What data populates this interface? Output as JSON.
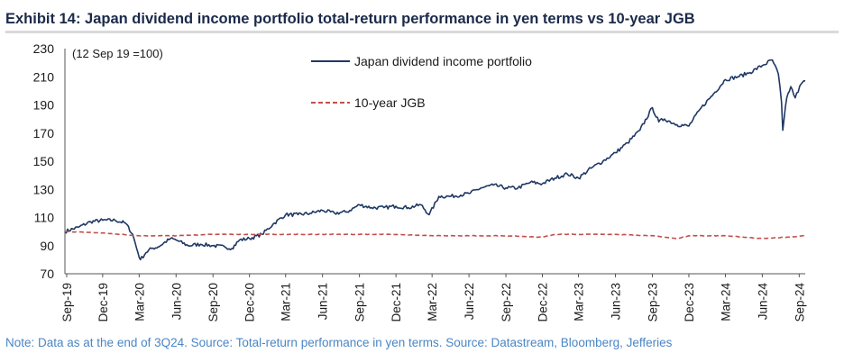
{
  "header": {
    "title": "Exhibit 14: Japan dividend income portfolio total-return performance in yen terms vs 10-year JGB"
  },
  "footer": {
    "note": "Note: Data as at the end of 3Q24. Source: Total-return performance in yen terms. Source: Datastream, Bloomberg, Jefferies"
  },
  "colors": {
    "portfolio": "#1f3864",
    "jgb": "#c0504d",
    "axis": "#555555"
  },
  "chart_data": {
    "type": "line",
    "annotation": "(12 Sep 19 =100)",
    "ylim": [
      70,
      230
    ],
    "yticks": [
      70,
      90,
      110,
      130,
      150,
      170,
      190,
      210,
      230
    ],
    "xlim": [
      "2019-09-12",
      "2024-09-30"
    ],
    "xticks": [
      "Sep-19",
      "Dec-19",
      "Mar-20",
      "Jun-20",
      "Sep-20",
      "Dec-20",
      "Mar-21",
      "Jun-21",
      "Sep-21",
      "Dec-21",
      "Mar-22",
      "Jun-22",
      "Sep-22",
      "Dec-22",
      "Mar-23",
      "Jun-23",
      "Sep-23",
      "Dec-23",
      "Mar-24",
      "Jun-24",
      "Sep-24"
    ],
    "grid": false,
    "legend": "top-center",
    "series": [
      {
        "name": "Japan dividend income portfolio",
        "style": "solid",
        "points": [
          [
            "2019-09-12",
            100
          ],
          [
            "2019-10-15",
            103
          ],
          [
            "2019-11-15",
            107
          ],
          [
            "2019-12-15",
            108
          ],
          [
            "2020-01-15",
            108
          ],
          [
            "2020-02-10",
            106
          ],
          [
            "2020-02-28",
            98
          ],
          [
            "2020-03-12",
            85
          ],
          [
            "2020-03-18",
            80
          ],
          [
            "2020-04-01",
            85
          ],
          [
            "2020-04-15",
            88
          ],
          [
            "2020-05-01",
            89
          ],
          [
            "2020-06-01",
            95
          ],
          [
            "2020-06-15",
            94
          ],
          [
            "2020-07-15",
            90
          ],
          [
            "2020-08-15",
            91
          ],
          [
            "2020-09-15",
            90
          ],
          [
            "2020-10-15",
            89
          ],
          [
            "2020-11-01",
            88
          ],
          [
            "2020-11-20",
            94
          ],
          [
            "2020-12-15",
            95
          ],
          [
            "2021-01-15",
            98
          ],
          [
            "2021-02-15",
            106
          ],
          [
            "2021-03-15",
            112
          ],
          [
            "2021-04-15",
            112
          ],
          [
            "2021-05-15",
            113
          ],
          [
            "2021-06-15",
            115
          ],
          [
            "2021-07-15",
            113
          ],
          [
            "2021-08-15",
            114
          ],
          [
            "2021-09-15",
            119
          ],
          [
            "2021-10-15",
            117
          ],
          [
            "2021-11-15",
            117
          ],
          [
            "2021-12-15",
            118
          ],
          [
            "2022-01-15",
            117
          ],
          [
            "2022-02-15",
            119
          ],
          [
            "2022-03-08",
            112
          ],
          [
            "2022-04-01",
            125
          ],
          [
            "2022-05-01",
            125
          ],
          [
            "2022-06-15",
            127
          ],
          [
            "2022-07-15",
            131
          ],
          [
            "2022-08-15",
            133
          ],
          [
            "2022-09-15",
            131
          ],
          [
            "2022-10-15",
            131
          ],
          [
            "2022-11-15",
            135
          ],
          [
            "2022-12-15",
            134
          ],
          [
            "2023-01-15",
            138
          ],
          [
            "2023-02-15",
            141
          ],
          [
            "2023-03-15",
            138
          ],
          [
            "2023-04-15",
            145
          ],
          [
            "2023-05-15",
            150
          ],
          [
            "2023-06-15",
            156
          ],
          [
            "2023-07-15",
            163
          ],
          [
            "2023-08-15",
            172
          ],
          [
            "2023-09-15",
            188
          ],
          [
            "2023-10-01",
            178
          ],
          [
            "2023-10-15",
            180
          ],
          [
            "2023-11-15",
            176
          ],
          [
            "2023-12-15",
            175
          ],
          [
            "2024-01-15",
            188
          ],
          [
            "2024-02-15",
            198
          ],
          [
            "2024-03-15",
            208
          ],
          [
            "2024-04-15",
            210
          ],
          [
            "2024-05-15",
            213
          ],
          [
            "2024-06-15",
            218
          ],
          [
            "2024-07-10",
            222
          ],
          [
            "2024-07-25",
            212
          ],
          [
            "2024-08-02",
            192
          ],
          [
            "2024-08-05",
            172
          ],
          [
            "2024-08-15",
            195
          ],
          [
            "2024-08-25",
            203
          ],
          [
            "2024-09-05",
            195
          ],
          [
            "2024-09-20",
            205
          ],
          [
            "2024-09-30",
            207
          ]
        ]
      },
      {
        "name": "10-year JGB",
        "style": "dashed",
        "points": [
          [
            "2019-09-12",
            100
          ],
          [
            "2019-12-15",
            99
          ],
          [
            "2020-03-15",
            97
          ],
          [
            "2020-06-15",
            97
          ],
          [
            "2020-09-15",
            98
          ],
          [
            "2020-12-15",
            98
          ],
          [
            "2021-03-15",
            98
          ],
          [
            "2021-06-15",
            98
          ],
          [
            "2021-09-15",
            98
          ],
          [
            "2021-12-15",
            98
          ],
          [
            "2022-03-15",
            97
          ],
          [
            "2022-06-15",
            97
          ],
          [
            "2022-09-15",
            97
          ],
          [
            "2022-12-15",
            96
          ],
          [
            "2023-01-15",
            98
          ],
          [
            "2023-03-15",
            98
          ],
          [
            "2023-06-15",
            98
          ],
          [
            "2023-09-15",
            97
          ],
          [
            "2023-11-15",
            95
          ],
          [
            "2023-12-15",
            97
          ],
          [
            "2024-03-15",
            97
          ],
          [
            "2024-06-15",
            95
          ],
          [
            "2024-08-15",
            96
          ],
          [
            "2024-09-30",
            97
          ]
        ]
      }
    ]
  }
}
